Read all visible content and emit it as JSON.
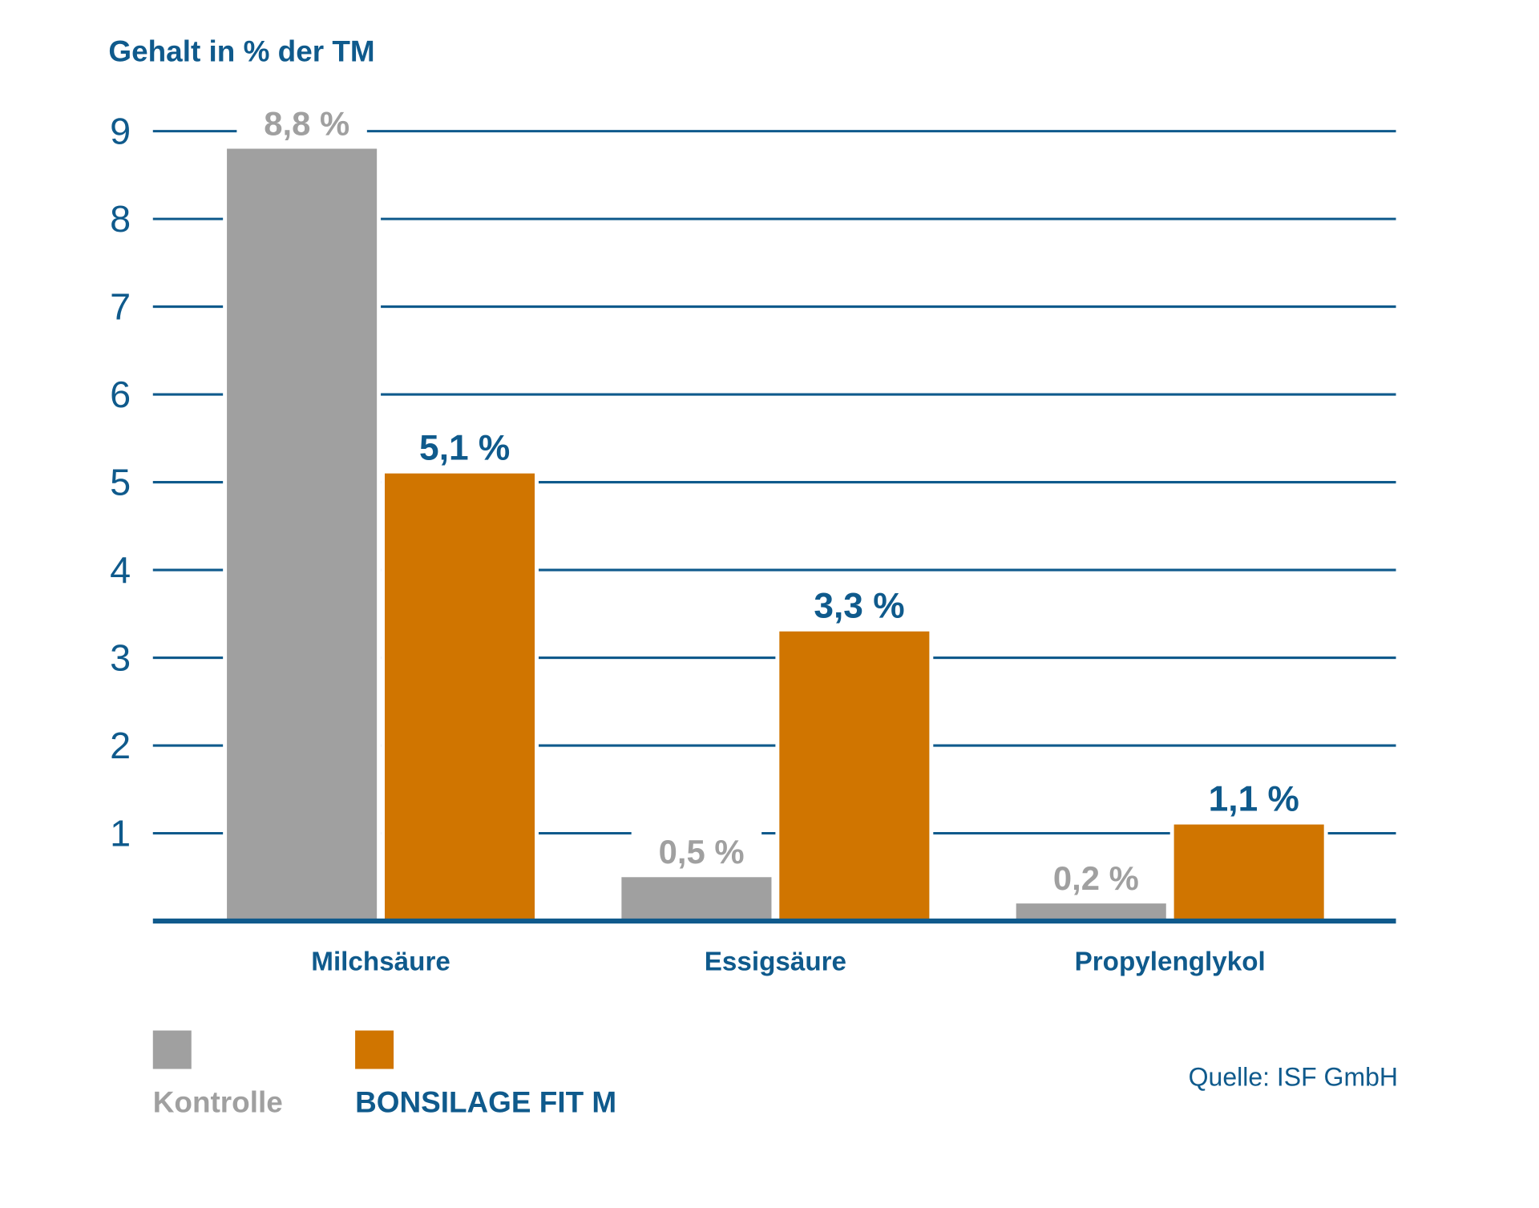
{
  "chart_data": {
    "type": "bar",
    "ylabel": "Gehalt in % der TM",
    "categories": [
      "Milchsäure",
      "Essigsäure",
      "Propylenglykol"
    ],
    "series": [
      {
        "name": "Kontrolle",
        "values": [
          8.8,
          0.5,
          0.2
        ],
        "labels": [
          "8,8 %",
          "0,5 %",
          "0,2 %"
        ],
        "color": "#a0a0a0"
      },
      {
        "name": "BONSILAGE FIT M",
        "values": [
          5.1,
          3.3,
          1.1
        ],
        "labels": [
          "5,1 %",
          "3,3 %",
          "1,1 %"
        ],
        "color": "#d07500"
      }
    ],
    "yticks": [
      1,
      2,
      3,
      4,
      5,
      6,
      7,
      8,
      9
    ],
    "ylim": [
      0,
      9
    ],
    "grid": true,
    "legend": "bottom-left",
    "source": "Quelle: ISF GmbH",
    "colors": {
      "axis": "#0f5a8c",
      "kontrolle_label": "#a0a0a0",
      "fit_label": "#0f5a8c"
    }
  }
}
